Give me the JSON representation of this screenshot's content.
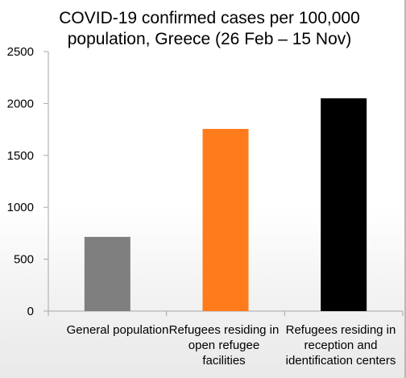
{
  "chart_data": {
    "type": "bar",
    "title_lines": [
      "COVID-19 confirmed cases per 100,000",
      "population, Greece (26 Feb – 15 Nov)"
    ],
    "categories": [
      "General population",
      "Refugees residing in open refugee facilities",
      "Refugees residing in reception and identification centers"
    ],
    "category_label_lines": [
      [
        "General population"
      ],
      [
        "Refugees residing in",
        "open refugee",
        "facilities"
      ],
      [
        "Refugees residing in",
        "reception and",
        "identification centers"
      ]
    ],
    "values": [
      715,
      1755,
      2050
    ],
    "bar_colors": [
      "#7f7f7f",
      "#ff7b1c",
      "#000000"
    ],
    "ylim": [
      0,
      2500
    ],
    "yticks": [
      0,
      500,
      1000,
      1500,
      2000,
      2500
    ],
    "grid": false,
    "xlabel": "",
    "ylabel": ""
  }
}
